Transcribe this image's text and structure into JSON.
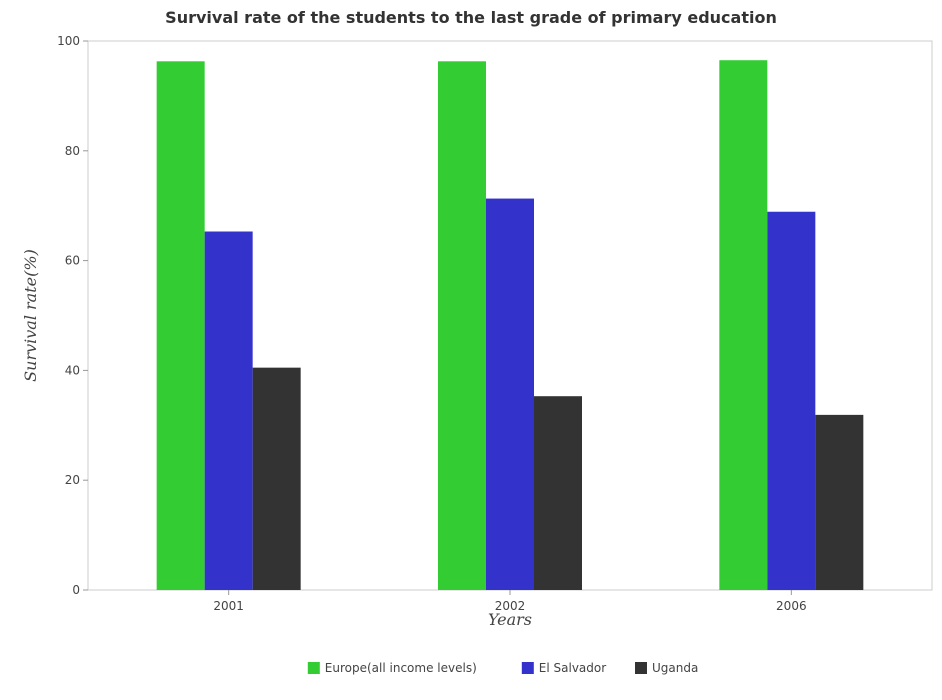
{
  "chart_data": {
    "type": "bar",
    "title": "Survival rate of the students to the last grade of primary education",
    "xlabel": "Years",
    "ylabel": "Survival rate(%)",
    "categories": [
      "2001",
      "2002",
      "2006"
    ],
    "ylim": [
      0,
      100
    ],
    "yticks": [
      0,
      20,
      40,
      60,
      80,
      100
    ],
    "series": [
      {
        "name": "Europe(all income levels)",
        "color": "#33cc33",
        "values": [
          96.3,
          96.3,
          96.5
        ]
      },
      {
        "name": "El Salvador",
        "color": "#3333cc",
        "values": [
          65.3,
          71.3,
          68.9
        ]
      },
      {
        "name": "Uganda",
        "color": "#333333",
        "values": [
          40.5,
          35.3,
          31.9
        ]
      }
    ],
    "grid": false,
    "legend_position": "bottom-center"
  }
}
